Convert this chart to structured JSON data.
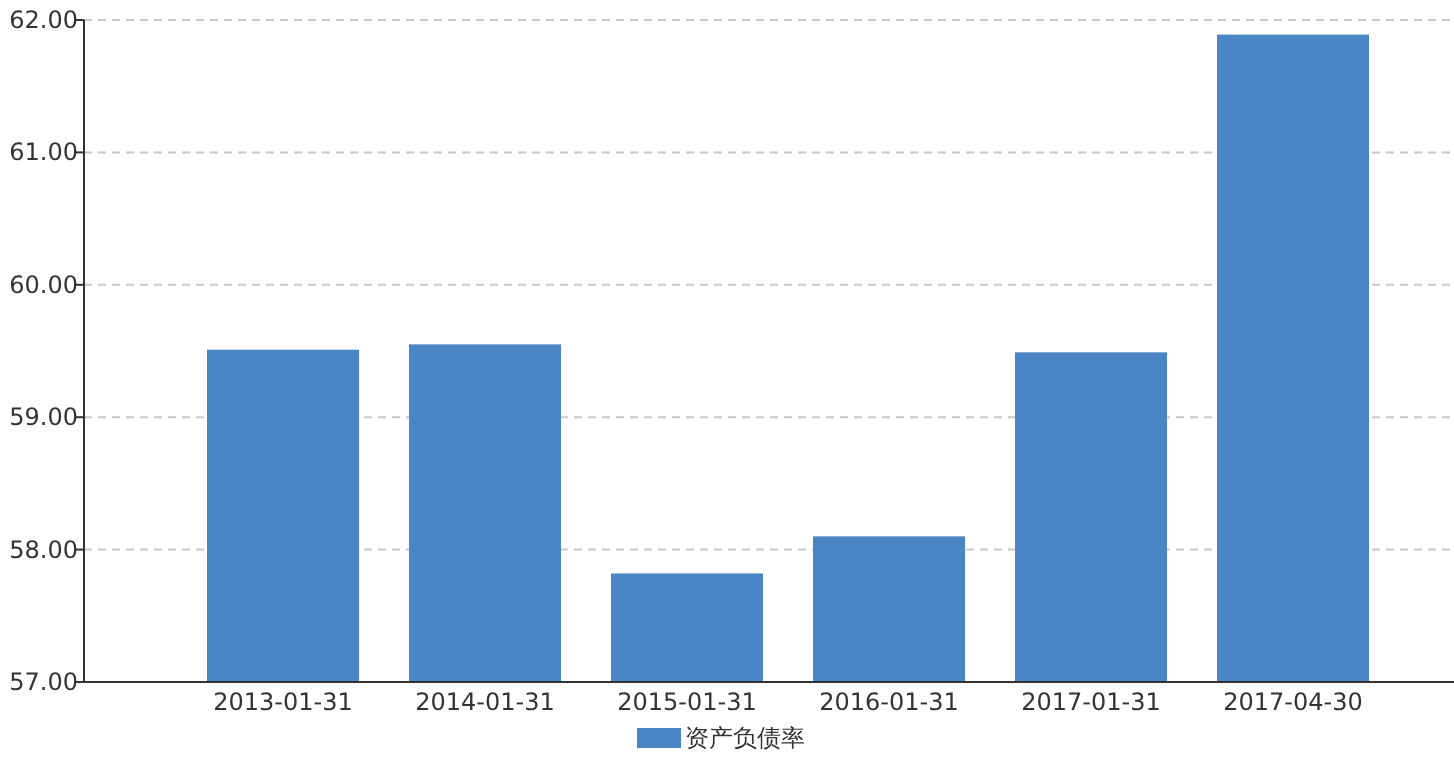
{
  "chart_data": {
    "type": "bar",
    "categories": [
      "2013-01-31",
      "2014-01-31",
      "2015-01-31",
      "2016-01-31",
      "2017-01-31",
      "2017-04-30"
    ],
    "series": [
      {
        "name": "资产负债率",
        "color": "#4a86c5",
        "values": [
          59.51,
          59.55,
          57.82,
          58.1,
          59.49,
          61.89
        ]
      }
    ],
    "ylim": [
      57,
      62
    ],
    "yticks": [
      {
        "value": 57,
        "label": "57.00"
      },
      {
        "value": 58,
        "label": "58.00"
      },
      {
        "value": 59,
        "label": "59.00"
      },
      {
        "value": 60,
        "label": "60.00"
      },
      {
        "value": 61,
        "label": "61.00"
      },
      {
        "value": 62,
        "label": "62.00"
      }
    ],
    "grid": "y",
    "legend": "bottom"
  }
}
